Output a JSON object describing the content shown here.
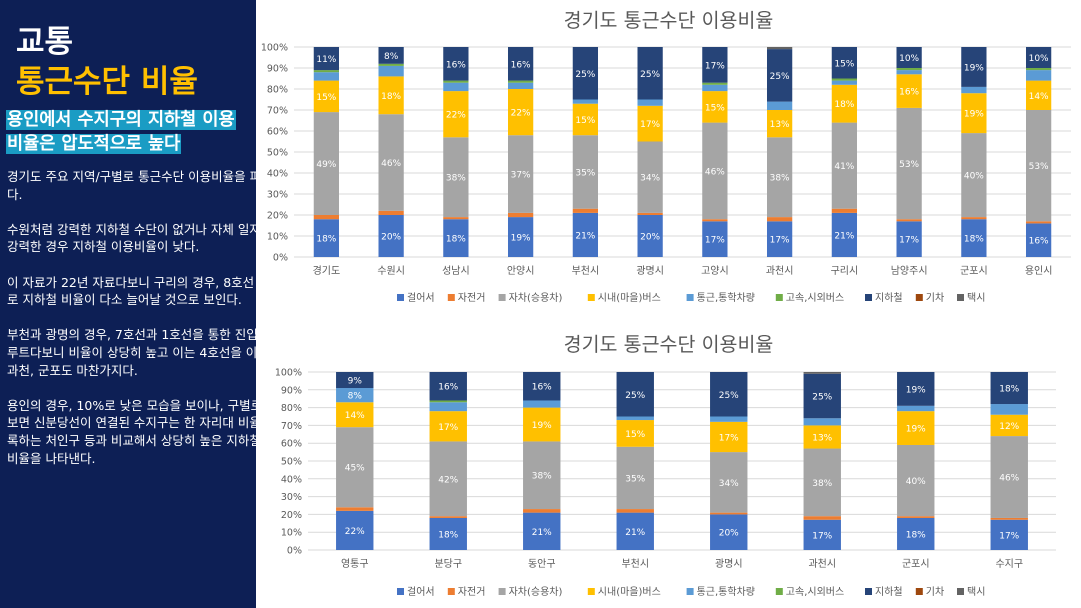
{
  "sidebar": {
    "title_line1": "교통",
    "title_line2": "통근수단 비율",
    "highlight": "용인에서 수지구의 지하철 이용비율은 압도적으로 높다",
    "body": "경기도 주요 지역/구별로 통근수단 이용비율을 파악해봤다.\n\n수원처럼 강력한 지하철 수단이 없거나 자체 일자리가 강력한 경우 지하철 이용비율이 낮다.\n\n이 자료가 22년 자료다보니 구리의 경우, 8호선 연장으로 지하철 비율이 다소 늘어날 것으로 보인다.\n\n부천과 광명의 경우, 7호선과 1호선을 통한 진입이 주요 루트다보니 비율이 상당히 높고 이는 4호선을 이용하는 과천, 군포도 마찬가지다.\n\n용인의 경우, 10%로 낮은 모습을 보이나, 구별로 살펴보면 신분당선이 연결된 수지구는 한 자리대 비율을 기록하는 처인구 등과 비교해서 상당히 높은 지하철 이용비율을 나타낸다."
  },
  "legend": [
    "걸어서",
    "자전거",
    "자차(승용차)",
    "시내(마을)버스",
    "통근,통학차량",
    "고속,시외버스",
    "지하철",
    "기차",
    "택시"
  ],
  "colors": [
    "#4472c4",
    "#ed7d31",
    "#a5a5a5",
    "#ffc000",
    "#5b9bd5",
    "#70ad47",
    "#264478",
    "#9e480e",
    "#636363"
  ],
  "chart_data": [
    {
      "type": "bar",
      "stacked": true,
      "title": "경기도 통근수단 이용비율",
      "ylim": [
        0,
        100
      ],
      "yticks": [
        "0%",
        "10%",
        "20%",
        "30%",
        "40%",
        "50%",
        "60%",
        "70%",
        "80%",
        "90%",
        "100%"
      ],
      "categories": [
        "경기도",
        "수원시",
        "성남시",
        "안양시",
        "부천시",
        "광명시",
        "고양시",
        "과천시",
        "구리시",
        "남양주시",
        "군포시",
        "용인시"
      ],
      "series": [
        {
          "name": "걸어서",
          "values": [
            18,
            20,
            18,
            19,
            21,
            20,
            17,
            17,
            21,
            17,
            18,
            16
          ]
        },
        {
          "name": "자전거",
          "values": [
            2,
            2,
            1,
            2,
            2,
            1,
            1,
            2,
            2,
            1,
            1,
            1
          ]
        },
        {
          "name": "자차(승용차)",
          "values": [
            49,
            46,
            38,
            37,
            35,
            34,
            46,
            38,
            41,
            53,
            40,
            53
          ]
        },
        {
          "name": "시내(마을)버스",
          "values": [
            15,
            18,
            22,
            22,
            15,
            17,
            15,
            13,
            18,
            16,
            19,
            14
          ]
        },
        {
          "name": "통근,통학차량",
          "values": [
            4,
            5,
            4,
            3,
            2,
            3,
            3,
            4,
            2,
            2,
            3,
            5
          ]
        },
        {
          "name": "고속,시외버스",
          "values": [
            1,
            1,
            1,
            1,
            0,
            0,
            1,
            0,
            1,
            1,
            0,
            1
          ]
        },
        {
          "name": "지하철",
          "values": [
            11,
            8,
            16,
            16,
            25,
            25,
            17,
            25,
            15,
            10,
            19,
            10
          ]
        },
        {
          "name": "기차",
          "values": [
            0,
            0,
            0,
            0,
            0,
            0,
            0,
            0,
            0,
            0,
            0,
            0
          ]
        },
        {
          "name": "택시",
          "values": [
            0,
            0,
            0,
            0,
            0,
            0,
            0,
            1,
            0,
            0,
            0,
            0
          ]
        }
      ]
    },
    {
      "type": "bar",
      "stacked": true,
      "title": "경기도 통근수단 이용비율",
      "ylim": [
        0,
        100
      ],
      "yticks": [
        "0%",
        "10%",
        "20%",
        "30%",
        "40%",
        "50%",
        "60%",
        "70%",
        "80%",
        "90%",
        "100%"
      ],
      "categories": [
        "영통구",
        "분당구",
        "동안구",
        "부천시",
        "광명시",
        "과천시",
        "군포시",
        "수지구"
      ],
      "series": [
        {
          "name": "걸어서",
          "values": [
            22,
            18,
            21,
            21,
            20,
            17,
            18,
            17
          ]
        },
        {
          "name": "자전거",
          "values": [
            2,
            1,
            2,
            2,
            1,
            2,
            1,
            1
          ]
        },
        {
          "name": "자차(승용차)",
          "values": [
            45,
            42,
            38,
            35,
            34,
            38,
            40,
            46
          ]
        },
        {
          "name": "시내(마을)버스",
          "values": [
            14,
            17,
            19,
            15,
            17,
            13,
            19,
            12
          ]
        },
        {
          "name": "통근,통학차량",
          "values": [
            8,
            5,
            4,
            2,
            3,
            4,
            3,
            6
          ]
        },
        {
          "name": "고속,시외버스",
          "values": [
            0,
            1,
            0,
            0,
            0,
            0,
            0,
            0
          ]
        },
        {
          "name": "지하철",
          "values": [
            9,
            16,
            16,
            25,
            25,
            25,
            19,
            18
          ]
        },
        {
          "name": "기차",
          "values": [
            0,
            0,
            0,
            0,
            0,
            0,
            0,
            0
          ]
        },
        {
          "name": "택시",
          "values": [
            0,
            0,
            0,
            0,
            0,
            1,
            0,
            0
          ]
        }
      ]
    }
  ]
}
